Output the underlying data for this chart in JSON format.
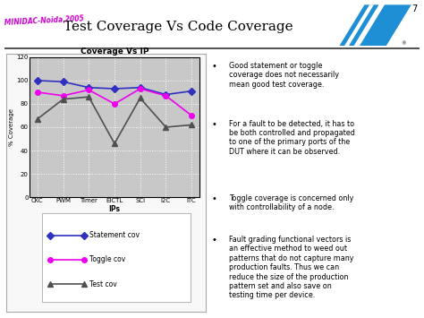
{
  "title": "Test Coverage Vs Code Coverage",
  "slide_bg": "#f0f0eb",
  "chart_title": "Coverage Vs IP",
  "categories": [
    "CKC",
    "PWM",
    "Timer",
    "ElCTL",
    "SCI",
    "I2C",
    "ITC"
  ],
  "statement_cov": [
    100,
    99,
    94,
    93,
    94,
    88,
    91
  ],
  "toggle_cov": [
    90,
    87,
    92,
    80,
    93,
    87,
    70
  ],
  "test_cov": [
    67,
    84,
    86,
    46,
    85,
    60,
    62
  ],
  "ylabel": "% Coverage",
  "xlabel": "IPs",
  "ylim": [
    0,
    120
  ],
  "yticks": [
    0,
    20,
    40,
    60,
    80,
    100,
    120
  ],
  "chart_bg": "#c8c8c8",
  "statement_color": "#3030c0",
  "toggle_color": "#ee00ee",
  "test_color": "#505050",
  "line_width": 1.2,
  "marker_size": 4,
  "bullet_points": [
    "Good statement or toggle\ncoverage does not necessarily\nmean good test coverage.",
    "For a fault to be detected, it has to\nbe both controlled and propagated\nto one of the primary ports of the\nDUT where it can be observed.",
    "Toggle coverage is concerned only\nwith controllability of a node.",
    "Fault grading functional vectors is\nan effective method to weed out\npatterns that do not capture many\nproduction faults. Thus we can\nreduce the size of the production\npattern set and also save on\ntesting time per device."
  ],
  "slide_number": "7",
  "minidac_text": "MINIDAC-Noida 2005",
  "minidac_color": "#cc00cc",
  "st_blue": "#1e8fd5",
  "header_line_color": "#555555",
  "legend_items": [
    {
      "label": "Statement cov",
      "color": "#3030c0",
      "marker": "D"
    },
    {
      "label": "Toggle cov",
      "color": "#ee00ee",
      "marker": "o"
    },
    {
      "label": "Test cov",
      "color": "#505050",
      "marker": "^"
    }
  ]
}
